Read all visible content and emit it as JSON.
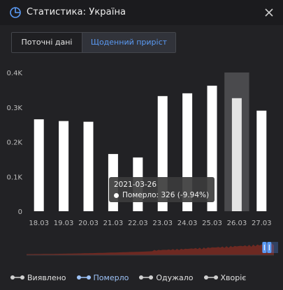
{
  "window": {
    "title": "Статистика: Україна",
    "title_icon": "pie-chart-icon",
    "close_icon": "close-icon"
  },
  "tabs": [
    {
      "label": "Поточні дані",
      "active": false
    },
    {
      "label": "Щоденний приріст",
      "active": true
    }
  ],
  "colors": {
    "background": "#222225",
    "accent": "#5b9bf5",
    "bar": "#ffffff",
    "bar_highlight": "#e3e3e3",
    "navigator_fill": "#7a2a22"
  },
  "chart_data": {
    "type": "bar",
    "categories": [
      "18.03",
      "19.03",
      "20.03",
      "21.03",
      "22.03",
      "23.03",
      "24.03",
      "25.03",
      "26.03",
      "27.03"
    ],
    "series": [
      {
        "name": "Померло",
        "values": [
          265,
          260,
          258,
          165,
          155,
          332,
          340,
          362,
          326,
          290
        ]
      }
    ],
    "yticks": [
      "0",
      "0.1K",
      "0.2K",
      "0.3K",
      "0.4K"
    ],
    "ylim": [
      0,
      400
    ],
    "highlight_index": 8,
    "grid": false
  },
  "tooltip": {
    "date": "2021-03-26",
    "text": "Померло: 326 (-9.94%)"
  },
  "navigator": {
    "range_start": 0.97,
    "range_end": 1.0
  },
  "legend": [
    {
      "label": "Виявлено",
      "selected": false
    },
    {
      "label": "Померло",
      "selected": true
    },
    {
      "label": "Одужало",
      "selected": false
    },
    {
      "label": "Хворіє",
      "selected": false
    }
  ]
}
